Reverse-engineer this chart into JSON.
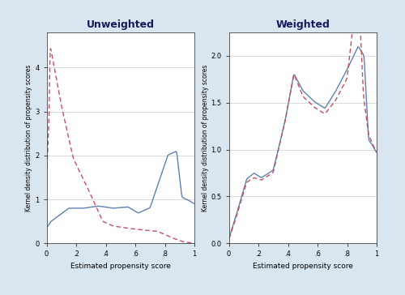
{
  "background_color": "#d9e6f0",
  "panel_bg": "#ffffff",
  "left_title": "Unweighted",
  "right_title": "Weighted",
  "xlabel": "Estimated propensity score",
  "ylabel": "Kernel density distribution of propensity scores",
  "treated_color": "#6080b0",
  "control_color": "#c05060",
  "left_ylim": [
    0,
    4.8
  ],
  "right_ylim": [
    0,
    2.25
  ],
  "left_yticks": [
    0,
    1,
    2,
    3,
    4
  ],
  "right_yticks": [
    0,
    0.5,
    1.0,
    1.5,
    2.0
  ],
  "xticks": [
    0,
    0.2,
    0.4,
    0.6,
    0.8,
    1.0
  ],
  "xticklabels": [
    "0",
    ".2",
    ".4",
    ".6",
    ".8",
    "1"
  ]
}
